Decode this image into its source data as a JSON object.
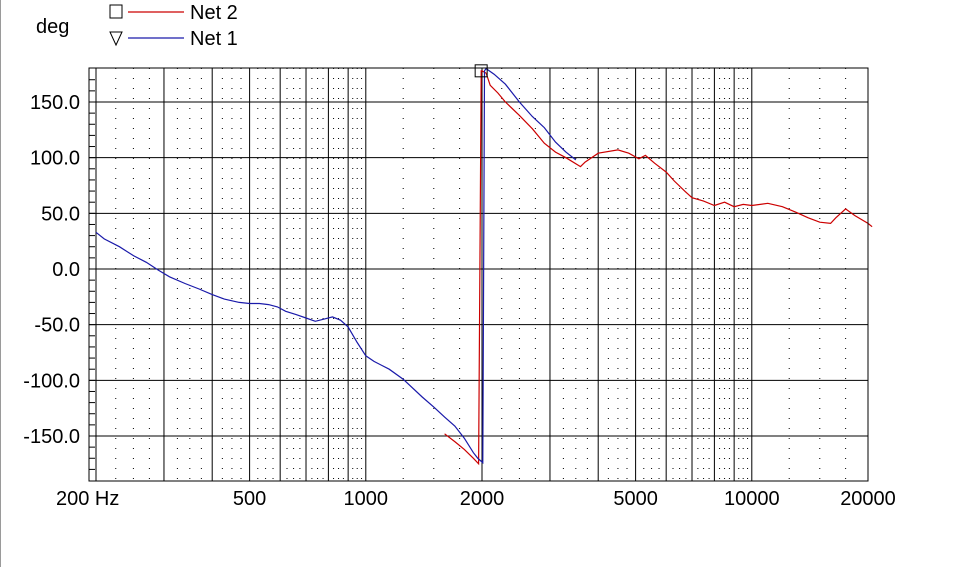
{
  "chart_data": {
    "type": "line",
    "ylabel": "deg",
    "xscale": "log",
    "xlim": [
      200,
      20000
    ],
    "ylim": [
      -190,
      180
    ],
    "grid": true,
    "legend_position": "top-left",
    "x_ticks": [
      {
        "value": 200,
        "label": "200 Hz"
      },
      {
        "value": 500,
        "label": "500"
      },
      {
        "value": 1000,
        "label": "1000"
      },
      {
        "value": 2000,
        "label": "2000"
      },
      {
        "value": 5000,
        "label": "5000"
      },
      {
        "value": 10000,
        "label": "10000"
      },
      {
        "value": 20000,
        "label": "20000"
      }
    ],
    "y_ticks": [
      {
        "value": 150,
        "label": "150.0"
      },
      {
        "value": 100,
        "label": "100.0"
      },
      {
        "value": 50,
        "label": "50.0"
      },
      {
        "value": 0,
        "label": "0.0"
      },
      {
        "value": -50,
        "label": "-50.0"
      },
      {
        "value": -100,
        "label": "-100.0"
      },
      {
        "value": -150,
        "label": "-150.0"
      }
    ],
    "series": [
      {
        "name": "Net 2",
        "color": "#cc0000",
        "marker": "square",
        "points": [
          [
            1600,
            -148
          ],
          [
            1700,
            -155
          ],
          [
            1800,
            -162
          ],
          [
            1900,
            -170
          ],
          [
            1960,
            -175
          ],
          [
            1990,
            178
          ],
          [
            2000,
            178
          ],
          [
            2050,
            176
          ],
          [
            2100,
            165
          ],
          [
            2200,
            158
          ],
          [
            2300,
            150
          ],
          [
            2500,
            138
          ],
          [
            2700,
            126
          ],
          [
            2900,
            113
          ],
          [
            3100,
            105
          ],
          [
            3300,
            100
          ],
          [
            3600,
            92
          ],
          [
            3700,
            96
          ],
          [
            4000,
            104
          ],
          [
            4500,
            107
          ],
          [
            4800,
            104
          ],
          [
            5100,
            99
          ],
          [
            5300,
            102
          ],
          [
            5600,
            95
          ],
          [
            6000,
            87
          ],
          [
            6300,
            79
          ],
          [
            6700,
            70
          ],
          [
            7000,
            64
          ],
          [
            7500,
            61
          ],
          [
            8000,
            57
          ],
          [
            8500,
            60
          ],
          [
            9000,
            56
          ],
          [
            9500,
            58
          ],
          [
            10000,
            57
          ],
          [
            11000,
            59
          ],
          [
            12000,
            56
          ],
          [
            13000,
            51
          ],
          [
            14000,
            46
          ],
          [
            15000,
            42
          ],
          [
            16000,
            41
          ],
          [
            16500,
            46
          ],
          [
            17500,
            54
          ],
          [
            18500,
            48
          ],
          [
            20000,
            41
          ],
          [
            20500,
            38
          ]
        ]
      },
      {
        "name": "Net 1",
        "color": "#1a1aaa",
        "marker": "triangle-down",
        "points": [
          [
            200,
            33
          ],
          [
            210,
            27
          ],
          [
            230,
            20
          ],
          [
            250,
            12
          ],
          [
            270,
            6
          ],
          [
            290,
            -1
          ],
          [
            310,
            -7
          ],
          [
            340,
            -13
          ],
          [
            370,
            -18
          ],
          [
            400,
            -23
          ],
          [
            430,
            -27
          ],
          [
            470,
            -30
          ],
          [
            500,
            -31
          ],
          [
            530,
            -31
          ],
          [
            560,
            -32
          ],
          [
            590,
            -34
          ],
          [
            620,
            -38
          ],
          [
            660,
            -41
          ],
          [
            700,
            -44
          ],
          [
            740,
            -47
          ],
          [
            780,
            -45
          ],
          [
            820,
            -43
          ],
          [
            860,
            -46
          ],
          [
            900,
            -52
          ],
          [
            950,
            -66
          ],
          [
            1000,
            -78
          ],
          [
            1050,
            -83
          ],
          [
            1150,
            -90
          ],
          [
            1250,
            -99
          ],
          [
            1400,
            -115
          ],
          [
            1500,
            -124
          ],
          [
            1600,
            -133
          ],
          [
            1700,
            -141
          ],
          [
            1800,
            -152
          ],
          [
            1900,
            -165
          ],
          [
            1950,
            -170
          ],
          [
            1980,
            -172
          ],
          [
            2010,
            -174
          ],
          [
            2030,
            178
          ],
          [
            2050,
            180
          ],
          [
            2150,
            175
          ],
          [
            2300,
            166
          ],
          [
            2500,
            150
          ],
          [
            2700,
            137
          ],
          [
            2900,
            127
          ],
          [
            3100,
            114
          ],
          [
            3300,
            105
          ],
          [
            3500,
            98
          ]
        ]
      }
    ]
  }
}
